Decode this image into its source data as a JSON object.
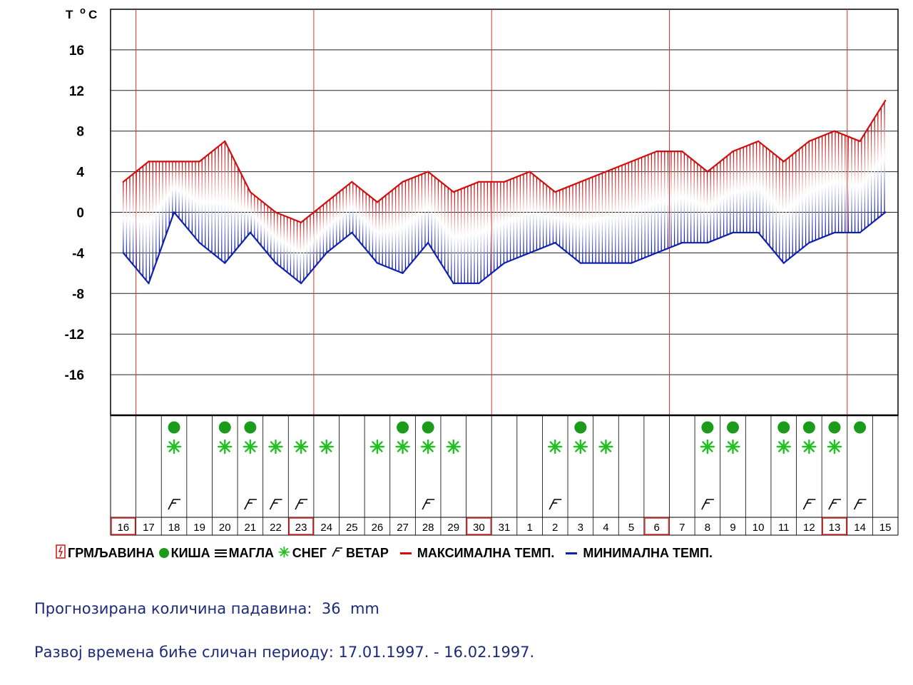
{
  "chart_data": {
    "type": "line",
    "ylabel": "T °C",
    "yticks": [
      16,
      12,
      8,
      4,
      0,
      -4,
      -8,
      -12,
      -16
    ],
    "ylim": [
      -20,
      20
    ],
    "days": [
      "16",
      "17",
      "18",
      "19",
      "20",
      "21",
      "22",
      "23",
      "24",
      "25",
      "26",
      "27",
      "28",
      "29",
      "30",
      "31",
      "1",
      "2",
      "3",
      "4",
      "5",
      "6",
      "7",
      "8",
      "9",
      "10",
      "11",
      "12",
      "13",
      "14",
      "15"
    ],
    "highlighted_days": [
      "16",
      "23",
      "30",
      "6",
      "13"
    ],
    "series": [
      {
        "name": "МАКСИМАЛНА ТЕМП.",
        "color": "#d01010",
        "values": [
          3,
          5,
          5,
          5,
          7,
          2,
          0,
          -1,
          1,
          3,
          1,
          3,
          4,
          2,
          3,
          3,
          4,
          2,
          3,
          4,
          5,
          6,
          6,
          4,
          6,
          7,
          5,
          7,
          8,
          7,
          11
        ]
      },
      {
        "name": "МИНИМАЛНА ТЕМП.",
        "color": "#1020b0",
        "values": [
          -4,
          -7,
          0,
          -3,
          -5,
          -2,
          -5,
          -7,
          -4,
          -2,
          -5,
          -6,
          -3,
          -7,
          -7,
          -5,
          -4,
          -3,
          -5,
          -5,
          -5,
          -4,
          -3,
          -3,
          -2,
          -2,
          -5,
          -3,
          -2,
          -2,
          0
        ]
      }
    ],
    "weather": {
      "rain": [
        "18",
        "20",
        "21",
        "27",
        "28",
        "3",
        "8",
        "9",
        "11",
        "12",
        "13",
        "14"
      ],
      "snow": [
        "18",
        "20",
        "21",
        "22",
        "23",
        "24",
        "26",
        "27",
        "28",
        "29",
        "2",
        "3",
        "4",
        "8",
        "9",
        "11",
        "12",
        "13"
      ],
      "wind": [
        "18",
        "21",
        "22",
        "23",
        "28",
        "2",
        "8",
        "12",
        "13",
        "14"
      ]
    },
    "legend": {
      "thunder": "ГРМЉАВИНА",
      "rain": "КИША",
      "fog": "МАГЛА",
      "snow": "СНЕГ",
      "wind": "ВЕТАР",
      "max": "МАКСИМАЛНА ТЕМП.",
      "min": "МИНИМАЛНА ТЕМП."
    },
    "colors": {
      "rain": "#1a9c1a",
      "snow": "#22c022",
      "thunder": "#d01010",
      "max": "#d01010",
      "min": "#1020b0",
      "grid_red": "#e03030"
    }
  },
  "info": {
    "precip_label": "Прогнозирана количина падавина:",
    "precip_value": "36",
    "precip_unit": "mm",
    "period_label": "Развој времена биће сличан периоду:",
    "period_value": "17.01.1997. - 16.02.1997."
  }
}
